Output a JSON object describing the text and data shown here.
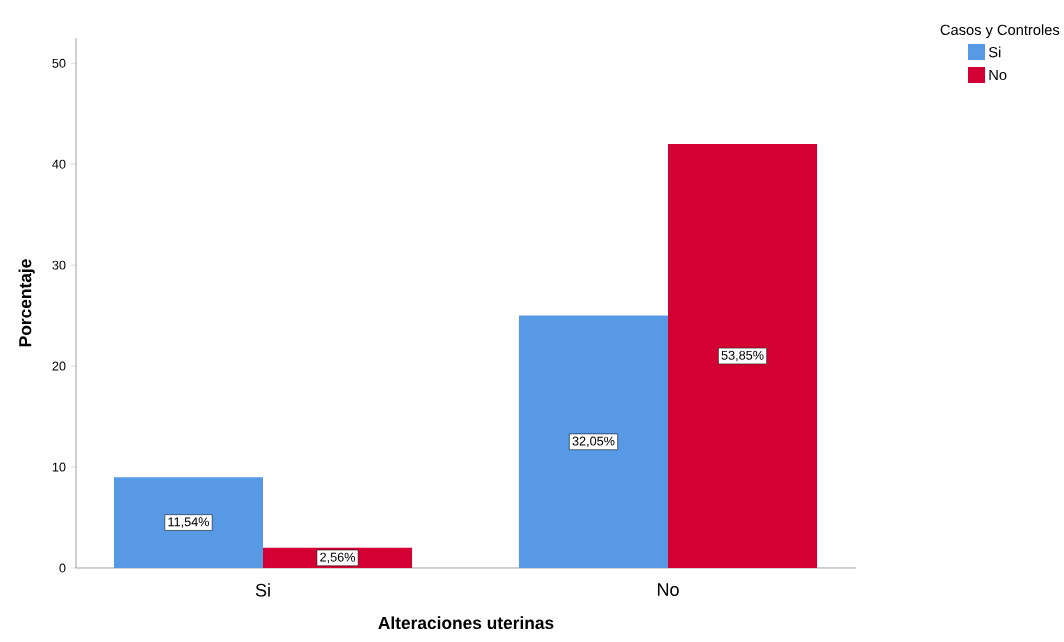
{
  "chart_data": {
    "type": "bar",
    "xlabel": "Alteraciones uterinas",
    "ylabel": "Porcentaje",
    "legend_title": "Casos y Controles",
    "categories": [
      "Si",
      "No"
    ],
    "series": [
      {
        "name": "Si",
        "color": "#5799e4",
        "values": [
          9,
          25
        ]
      },
      {
        "name": "No",
        "color": "#d20033",
        "values": [
          2,
          42
        ]
      }
    ],
    "annotations": [
      "11,54%",
      "2,56%",
      "32,05%",
      "53,85%"
    ],
    "ylim": [
      0,
      52.5
    ],
    "yticks": [
      0,
      10,
      20,
      30,
      40,
      50
    ],
    "grid": false,
    "legend": "top right"
  }
}
